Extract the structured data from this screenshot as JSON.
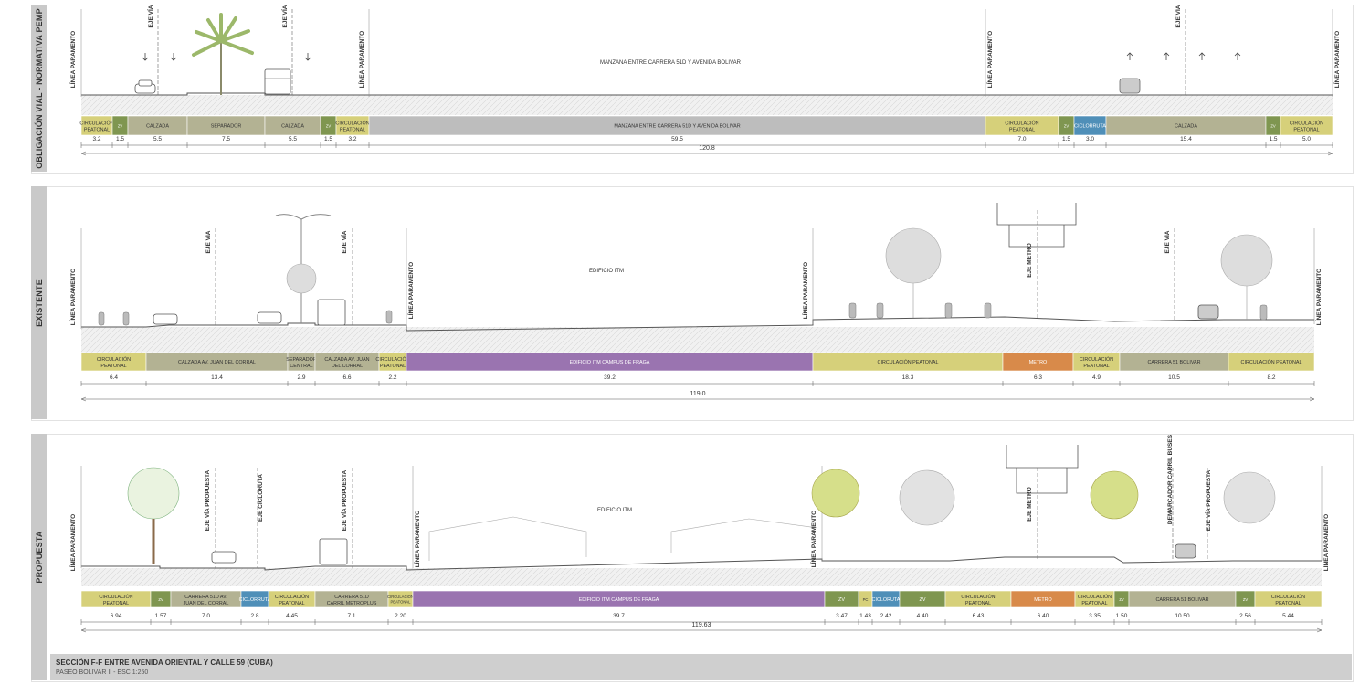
{
  "sections": [
    {
      "id": "obligacion",
      "side_label": "OBLIGACIÓN VIAL - NORMATIVA PEMP",
      "block_label": "MANZANA ENTRE CARRERA 51D Y AVENIDA BOLIVAR",
      "linea_labels": [
        "LÍNEA PARAMENTO",
        "LÍNEA PARAMENTO",
        "LÍNEA PARAMENTO",
        "LÍNEA PARAMENTO"
      ],
      "eje_labels": [
        "EJE VÍA",
        "EJE VÍA",
        "EJE VÍA"
      ],
      "bands": [
        {
          "label": "CIRCULACIÓN PEATONAL",
          "color": "#d6d07a",
          "value": "3.2"
        },
        {
          "label": "ZV",
          "color": "#7f9650",
          "value": "1.5"
        },
        {
          "label": "CALZADA",
          "color": "#b3b293",
          "value": "5.5"
        },
        {
          "label": "SEPARADOR",
          "color": "#b3b293",
          "value": "7.5"
        },
        {
          "label": "CALZADA",
          "color": "#b3b293",
          "value": "5.5"
        },
        {
          "label": "ZV",
          "color": "#7f9650",
          "value": "1.5"
        },
        {
          "label": "CIRCULACIÓN PEATONAL",
          "color": "#d6d07a",
          "value": "3.2"
        },
        {
          "label": "MANZANA ENTRE CARRERA 51D Y AVENIDA BOLIVAR",
          "color": "#bdbdbd",
          "value": "59.5"
        },
        {
          "label": "CIRCULACIÓN PEATONAL",
          "color": "#d6d07a",
          "value": "7.0"
        },
        {
          "label": "ZV",
          "color": "#7f9650",
          "value": "1.5"
        },
        {
          "label": "CICLORRUTA",
          "color": "#4f8fb8",
          "value": "3.0"
        },
        {
          "label": "CALZADA",
          "color": "#b3b293",
          "value": "15.4"
        },
        {
          "label": "ZV",
          "color": "#7f9650",
          "value": "1.5"
        },
        {
          "label": "CIRCULACIÓN PEATONAL",
          "color": "#d6d07a",
          "value": "5.0"
        }
      ],
      "total": "120.8"
    },
    {
      "id": "existente",
      "side_label": "EXISTENTE",
      "block_label": "EDIFICIO ITM",
      "linea_labels": [
        "LÍNEA PARAMENTO",
        "LÍNEA PARAMENTO",
        "LÍNEA PARAMENTO",
        "LÍNEA PARAMENTO"
      ],
      "eje_labels": [
        "EJE VÍA",
        "EJE VÍA",
        "EJE METRO",
        "EJE VÍA"
      ],
      "bands": [
        {
          "label": "CIRCULACIÓN PEATONAL",
          "color": "#d6d07a",
          "value": "6.4"
        },
        {
          "label": "CALZADA AV. JUAN DEL CORRAL",
          "color": "#b3b293",
          "value": "13.4"
        },
        {
          "label": "SEPARADOR CENTRAL",
          "color": "#b3b293",
          "value": "2.9"
        },
        {
          "label": "CALZADA AV. JUAN DEL CORRAL",
          "color": "#b3b293",
          "value": "6.6"
        },
        {
          "label": "CIRCULACIÓN PEATONAL",
          "color": "#d6d07a",
          "value": "2.2"
        },
        {
          "label": "EDIFICIO ITM CAMPUS DE FRAGA",
          "color": "#9a74b0",
          "value": "39.2"
        },
        {
          "label": "CIRCULACIÓN PEATONAL",
          "color": "#d6d07a",
          "value": "18.3"
        },
        {
          "label": "METRO",
          "color": "#d88a4a",
          "value": "6.3"
        },
        {
          "label": "CIRCULACIÓN PEATONAL",
          "color": "#d6d07a",
          "value": "4.9"
        },
        {
          "label": "CARRERA 51 BOLIVAR",
          "color": "#b3b293",
          "value": "10.5"
        },
        {
          "label": "CIRCULACIÓN PEATONAL",
          "color": "#d6d07a",
          "value": "8.2"
        }
      ],
      "total": "119.0"
    },
    {
      "id": "propuesta",
      "side_label": "PROPUESTA",
      "block_label": "EDIFICIO ITM",
      "linea_labels": [
        "LÍNEA PARAMENTO",
        "LÍNEA PARAMENTO",
        "LÍNEA PARAMENTO",
        "LÍNEA PARAMENTO"
      ],
      "eje_labels": [
        "EJE VÍA PROPUESTA",
        "EJE CICLORUTA",
        "EJE VÍA PROPUESTA",
        "EJE METRO",
        "DEMARCADOR CARRIL BUSES",
        "EJE VÍA PROPUESTA"
      ],
      "bands": [
        {
          "label": "CIRCULACIÓN PEATONAL",
          "color": "#d6d07a",
          "value": "6.94"
        },
        {
          "label": "ZV",
          "color": "#7f9650",
          "value": "1.57"
        },
        {
          "label": "CARRERA 51D AV. JUAN DEL CORRAL",
          "color": "#b3b293",
          "value": "7.0"
        },
        {
          "label": "CICLORRUTA",
          "color": "#4f8fb8",
          "value": "2.8"
        },
        {
          "label": "CIRCULACIÓN PEATONAL",
          "color": "#d6d07a",
          "value": "4.45"
        },
        {
          "label": "CARRERA 51D CARRIL METROPLUS",
          "color": "#b3b293",
          "value": "7.1"
        },
        {
          "label": "CIRCULACIÓN PEATONAL",
          "color": "#d6d07a",
          "value": "2.20"
        },
        {
          "label": "EDIFICIO ITM CAMPUS DE FRAGA",
          "color": "#9a74b0",
          "value": "39.7"
        },
        {
          "label": "ZV",
          "color": "#7f9650",
          "value": "3.47"
        },
        {
          "label": "PC",
          "color": "#d6d07a",
          "value": "1.43"
        },
        {
          "label": "CICLORUTA",
          "color": "#4f8fb8",
          "value": "2.42"
        },
        {
          "label": "ZV",
          "color": "#7f9650",
          "value": "4.40"
        },
        {
          "label": "CIRCULACIÓN PEATONAL",
          "color": "#d6d07a",
          "value": "6.43"
        },
        {
          "label": "METRO",
          "color": "#d88a4a",
          "value": "6.40"
        },
        {
          "label": "CIRCULACIÓN PEATONAL",
          "color": "#d6d07a",
          "value": "3.35"
        },
        {
          "label": "ZV",
          "color": "#7f9650",
          "value": "1.50"
        },
        {
          "label": "CARRERA 51 BOLIVAR",
          "color": "#b3b293",
          "value": "10.50"
        },
        {
          "label": "ZV",
          "color": "#7f9650",
          "value": "2.56"
        },
        {
          "label": "CIRCULACIÓN PEATONAL",
          "color": "#d6d07a",
          "value": "5.44"
        }
      ],
      "total": "119.63"
    }
  ],
  "footer": {
    "title": "SECCIÓN F-F ENTRE AVENIDA ORIENTAL Y CALLE 59 (CUBA)",
    "subtitle": "PASEO BOLIVAR II - ESC 1:250"
  },
  "colors": {
    "peatonal": "#d6d07a",
    "zona_verde": "#7f9650",
    "calzada": "#b3b293",
    "ciclorruta": "#4f8fb8",
    "edificio": "#9a74b0",
    "metro": "#d88a4a",
    "manzana": "#bdbdbd"
  }
}
